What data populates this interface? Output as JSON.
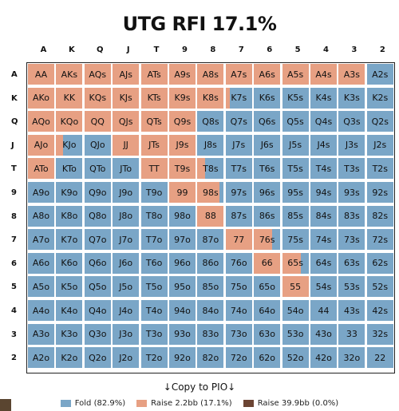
{
  "title": "UTG RFI 17.1%",
  "ranks": [
    "A",
    "K",
    "Q",
    "J",
    "T",
    "9",
    "8",
    "7",
    "6",
    "5",
    "4",
    "3",
    "2"
  ],
  "colors": {
    "fold": "#7aa6c7",
    "raise": "#e7a083",
    "raise_big": "#6b4433"
  },
  "cells": [
    [
      "AA",
      "AKs",
      "AQs",
      "AJs",
      "ATs",
      "A9s",
      "A8s",
      "A7s",
      "A6s",
      "A5s",
      "A4s",
      "A3s",
      "A2s"
    ],
    [
      "AKo",
      "KK",
      "KQs",
      "KJs",
      "KTs",
      "K9s",
      "K8s",
      "K7s",
      "K6s",
      "K5s",
      "K4s",
      "K3s",
      "K2s"
    ],
    [
      "AQo",
      "KQo",
      "QQ",
      "QJs",
      "QTs",
      "Q9s",
      "Q8s",
      "Q7s",
      "Q6s",
      "Q5s",
      "Q4s",
      "Q3s",
      "Q2s"
    ],
    [
      "AJo",
      "KJo",
      "QJo",
      "JJ",
      "JTs",
      "J9s",
      "J8s",
      "J7s",
      "J6s",
      "J5s",
      "J4s",
      "J3s",
      "J2s"
    ],
    [
      "ATo",
      "KTo",
      "QTo",
      "JTo",
      "TT",
      "T9s",
      "T8s",
      "T7s",
      "T6s",
      "T5s",
      "T4s",
      "T3s",
      "T2s"
    ],
    [
      "A9o",
      "K9o",
      "Q9o",
      "J9o",
      "T9o",
      "99",
      "98s",
      "97s",
      "96s",
      "95s",
      "94s",
      "93s",
      "92s"
    ],
    [
      "A8o",
      "K8o",
      "Q8o",
      "J8o",
      "T8o",
      "98o",
      "88",
      "87s",
      "86s",
      "85s",
      "84s",
      "83s",
      "82s"
    ],
    [
      "A7o",
      "K7o",
      "Q7o",
      "J7o",
      "T7o",
      "97o",
      "87o",
      "77",
      "76s",
      "75s",
      "74s",
      "73s",
      "72s"
    ],
    [
      "A6o",
      "K6o",
      "Q6o",
      "J6o",
      "T6o",
      "96o",
      "86o",
      "76o",
      "66",
      "65s",
      "64s",
      "63s",
      "62s"
    ],
    [
      "A5o",
      "K5o",
      "Q5o",
      "J5o",
      "T5o",
      "95o",
      "85o",
      "75o",
      "65o",
      "55",
      "54s",
      "53s",
      "52s"
    ],
    [
      "A4o",
      "K4o",
      "Q4o",
      "J4o",
      "T4o",
      "94o",
      "84o",
      "74o",
      "64o",
      "54o",
      "44",
      "43s",
      "42s"
    ],
    [
      "A3o",
      "K3o",
      "Q3o",
      "J3o",
      "T3o",
      "93o",
      "83o",
      "73o",
      "63o",
      "53o",
      "43o",
      "33",
      "32s"
    ],
    [
      "A2o",
      "K2o",
      "Q2o",
      "J2o",
      "T2o",
      "92o",
      "82o",
      "72o",
      "62o",
      "52o",
      "42o",
      "32o",
      "22"
    ]
  ],
  "raise_freq": [
    [
      1,
      1,
      1,
      1,
      1,
      1,
      1,
      1,
      1,
      1,
      1,
      1,
      0
    ],
    [
      1,
      1,
      1,
      1,
      1,
      1,
      1,
      0.15,
      0,
      0,
      0,
      0,
      0
    ],
    [
      1,
      1,
      1,
      1,
      1,
      1,
      0,
      0,
      0,
      0,
      0,
      0,
      0
    ],
    [
      1,
      0.25,
      0,
      1,
      1,
      1,
      0,
      0,
      0,
      0,
      0,
      0,
      0
    ],
    [
      1,
      0,
      0,
      0,
      1,
      1,
      0.3,
      0,
      0,
      0,
      0,
      0,
      0
    ],
    [
      0,
      0,
      0,
      0,
      0,
      1,
      0.85,
      0,
      0,
      0,
      0,
      0,
      0
    ],
    [
      0,
      0,
      0,
      0,
      0,
      0,
      1,
      0,
      0,
      0,
      0,
      0,
      0
    ],
    [
      0,
      0,
      0,
      0,
      0,
      0,
      0,
      1,
      0.7,
      0,
      0,
      0,
      0
    ],
    [
      0,
      0,
      0,
      0,
      0,
      0,
      0,
      0,
      1,
      0.7,
      0,
      0,
      0
    ],
    [
      0,
      0,
      0,
      0,
      0,
      0,
      0,
      0,
      0,
      1,
      0,
      0,
      0
    ],
    [
      0,
      0,
      0,
      0,
      0,
      0,
      0,
      0,
      0,
      0,
      0,
      0,
      0
    ],
    [
      0,
      0,
      0,
      0,
      0,
      0,
      0,
      0,
      0,
      0,
      0,
      0,
      0
    ],
    [
      0,
      0,
      0,
      0,
      0,
      0,
      0,
      0,
      0,
      0,
      0,
      0,
      0
    ]
  ],
  "copy_label": "↓Copy to PIO↓",
  "legend": [
    {
      "label": "Fold (82.9%)",
      "color": "#7aa6c7"
    },
    {
      "label": "Raise 2.2bb (17.1%)",
      "color": "#e7a083"
    },
    {
      "label": "Raise 39.9bb (0.0%)",
      "color": "#6b4433"
    }
  ]
}
